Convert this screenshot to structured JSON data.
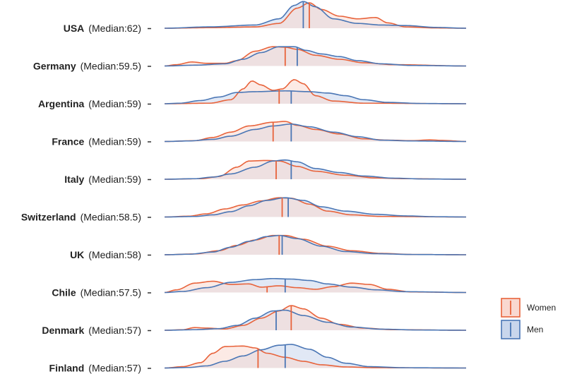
{
  "chart_data": {
    "type": "ridgeline",
    "colors": {
      "women_line": "#e8633b",
      "women_fill": "#f9d8d0",
      "men_line": "#4a76b5",
      "men_fill": "#c9d6ec"
    },
    "legend": [
      {
        "key": "women",
        "label": "Women"
      },
      {
        "key": "men",
        "label": "Men"
      }
    ],
    "x_range": [
      0,
      100
    ],
    "rows": [
      {
        "country": "USA",
        "median_label": "(Median:62)",
        "women_median": 48,
        "men_median": 46,
        "women": [
          [
            0,
            0
          ],
          [
            15,
            0.02
          ],
          [
            30,
            0.05
          ],
          [
            38,
            0.18
          ],
          [
            44,
            0.75
          ],
          [
            48,
            0.95
          ],
          [
            52,
            0.7
          ],
          [
            58,
            0.45
          ],
          [
            64,
            0.35
          ],
          [
            70,
            0.4
          ],
          [
            74,
            0.2
          ],
          [
            80,
            0.05
          ],
          [
            90,
            0.01
          ],
          [
            100,
            0
          ]
        ],
        "men": [
          [
            0,
            0
          ],
          [
            15,
            0.05
          ],
          [
            30,
            0.12
          ],
          [
            38,
            0.35
          ],
          [
            43,
            0.85
          ],
          [
            46,
            1.0
          ],
          [
            50,
            0.8
          ],
          [
            56,
            0.35
          ],
          [
            64,
            0.18
          ],
          [
            72,
            0.12
          ],
          [
            80,
            0.1
          ],
          [
            90,
            0.03
          ],
          [
            100,
            0
          ]
        ]
      },
      {
        "country": "Germany",
        "median_label": "(Median:59.5)",
        "women_median": 40,
        "men_median": 44,
        "women": [
          [
            0,
            0
          ],
          [
            4,
            0.05
          ],
          [
            9,
            0.15
          ],
          [
            14,
            0.1
          ],
          [
            20,
            0.1
          ],
          [
            24,
            0.2
          ],
          [
            30,
            0.55
          ],
          [
            36,
            0.72
          ],
          [
            40,
            0.7
          ],
          [
            44,
            0.62
          ],
          [
            50,
            0.4
          ],
          [
            58,
            0.25
          ],
          [
            66,
            0.12
          ],
          [
            76,
            0.05
          ],
          [
            100,
            0
          ]
        ],
        "men": [
          [
            0,
            0
          ],
          [
            10,
            0.03
          ],
          [
            20,
            0.08
          ],
          [
            26,
            0.25
          ],
          [
            32,
            0.5
          ],
          [
            38,
            0.72
          ],
          [
            43,
            0.72
          ],
          [
            47,
            0.58
          ],
          [
            52,
            0.45
          ],
          [
            58,
            0.35
          ],
          [
            64,
            0.2
          ],
          [
            72,
            0.08
          ],
          [
            82,
            0.02
          ],
          [
            100,
            0
          ]
        ]
      },
      {
        "country": "Argentina",
        "median_label": "(Median:59)",
        "women_median": 38,
        "men_median": 42,
        "women": [
          [
            0,
            0
          ],
          [
            15,
            0.02
          ],
          [
            22,
            0.15
          ],
          [
            26,
            0.55
          ],
          [
            29,
            0.85
          ],
          [
            32,
            0.7
          ],
          [
            36,
            0.5
          ],
          [
            39,
            0.55
          ],
          [
            43,
            0.9
          ],
          [
            46,
            0.75
          ],
          [
            50,
            0.3
          ],
          [
            56,
            0.1
          ],
          [
            66,
            0.02
          ],
          [
            100,
            0
          ]
        ],
        "men": [
          [
            0,
            0
          ],
          [
            5,
            0.02
          ],
          [
            12,
            0.12
          ],
          [
            18,
            0.25
          ],
          [
            24,
            0.42
          ],
          [
            30,
            0.45
          ],
          [
            40,
            0.48
          ],
          [
            48,
            0.45
          ],
          [
            54,
            0.4
          ],
          [
            60,
            0.3
          ],
          [
            66,
            0.15
          ],
          [
            74,
            0.05
          ],
          [
            85,
            0.01
          ],
          [
            100,
            0
          ]
        ]
      },
      {
        "country": "France",
        "median_label": "(Median:59)",
        "women_median": 36,
        "men_median": 42,
        "women": [
          [
            0,
            0
          ],
          [
            10,
            0.03
          ],
          [
            16,
            0.15
          ],
          [
            22,
            0.35
          ],
          [
            28,
            0.58
          ],
          [
            36,
            0.72
          ],
          [
            40,
            0.75
          ],
          [
            44,
            0.6
          ],
          [
            50,
            0.45
          ],
          [
            58,
            0.28
          ],
          [
            66,
            0.1
          ],
          [
            74,
            0.05
          ],
          [
            82,
            0.03
          ],
          [
            88,
            0.06
          ],
          [
            92,
            0.04
          ],
          [
            100,
            0
          ]
        ],
        "men": [
          [
            0,
            0
          ],
          [
            8,
            0.02
          ],
          [
            16,
            0.08
          ],
          [
            22,
            0.2
          ],
          [
            30,
            0.45
          ],
          [
            36,
            0.58
          ],
          [
            42,
            0.65
          ],
          [
            48,
            0.55
          ],
          [
            56,
            0.35
          ],
          [
            64,
            0.18
          ],
          [
            72,
            0.05
          ],
          [
            82,
            0.02
          ],
          [
            100,
            0
          ]
        ]
      },
      {
        "country": "Italy",
        "median_label": "(Median:59)",
        "women_median": 37,
        "men_median": 42,
        "women": [
          [
            0,
            0
          ],
          [
            12,
            0.02
          ],
          [
            18,
            0.1
          ],
          [
            24,
            0.45
          ],
          [
            28,
            0.68
          ],
          [
            34,
            0.7
          ],
          [
            38,
            0.68
          ],
          [
            44,
            0.48
          ],
          [
            50,
            0.3
          ],
          [
            60,
            0.15
          ],
          [
            70,
            0.05
          ],
          [
            80,
            0.02
          ],
          [
            100,
            0
          ]
        ],
        "men": [
          [
            0,
            0
          ],
          [
            10,
            0.02
          ],
          [
            16,
            0.08
          ],
          [
            22,
            0.2
          ],
          [
            30,
            0.45
          ],
          [
            36,
            0.68
          ],
          [
            40,
            0.72
          ],
          [
            44,
            0.65
          ],
          [
            50,
            0.4
          ],
          [
            58,
            0.25
          ],
          [
            66,
            0.12
          ],
          [
            76,
            0.04
          ],
          [
            86,
            0.01
          ],
          [
            100,
            0
          ]
        ]
      },
      {
        "country": "Switzerland",
        "median_label": "(Median:58.5)",
        "women_median": 39,
        "men_median": 41,
        "women": [
          [
            0,
            0
          ],
          [
            8,
            0.03
          ],
          [
            14,
            0.12
          ],
          [
            20,
            0.3
          ],
          [
            26,
            0.45
          ],
          [
            32,
            0.6
          ],
          [
            38,
            0.72
          ],
          [
            42,
            0.7
          ],
          [
            48,
            0.48
          ],
          [
            54,
            0.22
          ],
          [
            62,
            0.08
          ],
          [
            72,
            0.02
          ],
          [
            100,
            0
          ]
        ],
        "men": [
          [
            0,
            0
          ],
          [
            10,
            0.02
          ],
          [
            16,
            0.08
          ],
          [
            22,
            0.2
          ],
          [
            28,
            0.42
          ],
          [
            34,
            0.62
          ],
          [
            40,
            0.72
          ],
          [
            46,
            0.62
          ],
          [
            52,
            0.38
          ],
          [
            60,
            0.22
          ],
          [
            70,
            0.1
          ],
          [
            80,
            0.04
          ],
          [
            90,
            0.01
          ],
          [
            100,
            0
          ]
        ]
      },
      {
        "country": "UK",
        "median_label": "(Median:58)",
        "women_median": 38,
        "men_median": 39,
        "women": [
          [
            0,
            0
          ],
          [
            10,
            0.03
          ],
          [
            18,
            0.15
          ],
          [
            24,
            0.35
          ],
          [
            30,
            0.55
          ],
          [
            36,
            0.72
          ],
          [
            40,
            0.72
          ],
          [
            46,
            0.58
          ],
          [
            54,
            0.32
          ],
          [
            62,
            0.15
          ],
          [
            72,
            0.05
          ],
          [
            82,
            0.01
          ],
          [
            100,
            0
          ]
        ],
        "men": [
          [
            0,
            0
          ],
          [
            8,
            0.02
          ],
          [
            16,
            0.1
          ],
          [
            22,
            0.28
          ],
          [
            28,
            0.5
          ],
          [
            34,
            0.68
          ],
          [
            38,
            0.72
          ],
          [
            44,
            0.6
          ],
          [
            52,
            0.32
          ],
          [
            60,
            0.12
          ],
          [
            70,
            0.04
          ],
          [
            82,
            0.01
          ],
          [
            100,
            0
          ]
        ]
      },
      {
        "country": "Chile",
        "median_label": "(Median:57.5)",
        "women_median": 34,
        "men_median": 40,
        "women": [
          [
            0,
            0
          ],
          [
            4,
            0.1
          ],
          [
            10,
            0.35
          ],
          [
            16,
            0.42
          ],
          [
            22,
            0.3
          ],
          [
            28,
            0.32
          ],
          [
            32,
            0.2
          ],
          [
            38,
            0.25
          ],
          [
            44,
            0.18
          ],
          [
            50,
            0.12
          ],
          [
            56,
            0.22
          ],
          [
            62,
            0.35
          ],
          [
            68,
            0.3
          ],
          [
            74,
            0.12
          ],
          [
            82,
            0.02
          ],
          [
            100,
            0
          ]
        ],
        "men": [
          [
            0,
            0
          ],
          [
            6,
            0.04
          ],
          [
            14,
            0.18
          ],
          [
            22,
            0.38
          ],
          [
            30,
            0.48
          ],
          [
            36,
            0.52
          ],
          [
            42,
            0.5
          ],
          [
            48,
            0.45
          ],
          [
            54,
            0.32
          ],
          [
            62,
            0.2
          ],
          [
            70,
            0.1
          ],
          [
            80,
            0.03
          ],
          [
            100,
            0
          ]
        ]
      },
      {
        "country": "Denmark",
        "median_label": "(Median:57)",
        "women_median": 42,
        "men_median": 37,
        "women": [
          [
            0,
            0
          ],
          [
            6,
            0.02
          ],
          [
            10,
            0.1
          ],
          [
            14,
            0.08
          ],
          [
            20,
            0.05
          ],
          [
            26,
            0.18
          ],
          [
            32,
            0.45
          ],
          [
            38,
            0.72
          ],
          [
            42,
            0.92
          ],
          [
            46,
            0.8
          ],
          [
            52,
            0.45
          ],
          [
            58,
            0.22
          ],
          [
            66,
            0.08
          ],
          [
            76,
            0.02
          ],
          [
            100,
            0
          ]
        ],
        "men": [
          [
            0,
            0
          ],
          [
            10,
            0.02
          ],
          [
            18,
            0.06
          ],
          [
            24,
            0.18
          ],
          [
            30,
            0.45
          ],
          [
            36,
            0.72
          ],
          [
            40,
            0.75
          ],
          [
            46,
            0.55
          ],
          [
            54,
            0.3
          ],
          [
            62,
            0.12
          ],
          [
            72,
            0.04
          ],
          [
            84,
            0.01
          ],
          [
            100,
            0
          ]
        ]
      },
      {
        "country": "Finland",
        "median_label": "(Median:57)",
        "women_median": 31,
        "men_median": 40,
        "women": [
          [
            0,
            0
          ],
          [
            6,
            0.05
          ],
          [
            12,
            0.2
          ],
          [
            16,
            0.55
          ],
          [
            20,
            0.8
          ],
          [
            26,
            0.82
          ],
          [
            30,
            0.75
          ],
          [
            34,
            0.55
          ],
          [
            40,
            0.4
          ],
          [
            46,
            0.25
          ],
          [
            52,
            0.12
          ],
          [
            60,
            0.04
          ],
          [
            70,
            0.01
          ],
          [
            100,
            0
          ]
        ],
        "men": [
          [
            0,
            0
          ],
          [
            8,
            0.02
          ],
          [
            14,
            0.08
          ],
          [
            20,
            0.25
          ],
          [
            26,
            0.45
          ],
          [
            32,
            0.68
          ],
          [
            38,
            0.85
          ],
          [
            42,
            0.88
          ],
          [
            48,
            0.7
          ],
          [
            54,
            0.4
          ],
          [
            60,
            0.18
          ],
          [
            68,
            0.05
          ],
          [
            80,
            0.01
          ],
          [
            100,
            0
          ]
        ]
      }
    ]
  }
}
